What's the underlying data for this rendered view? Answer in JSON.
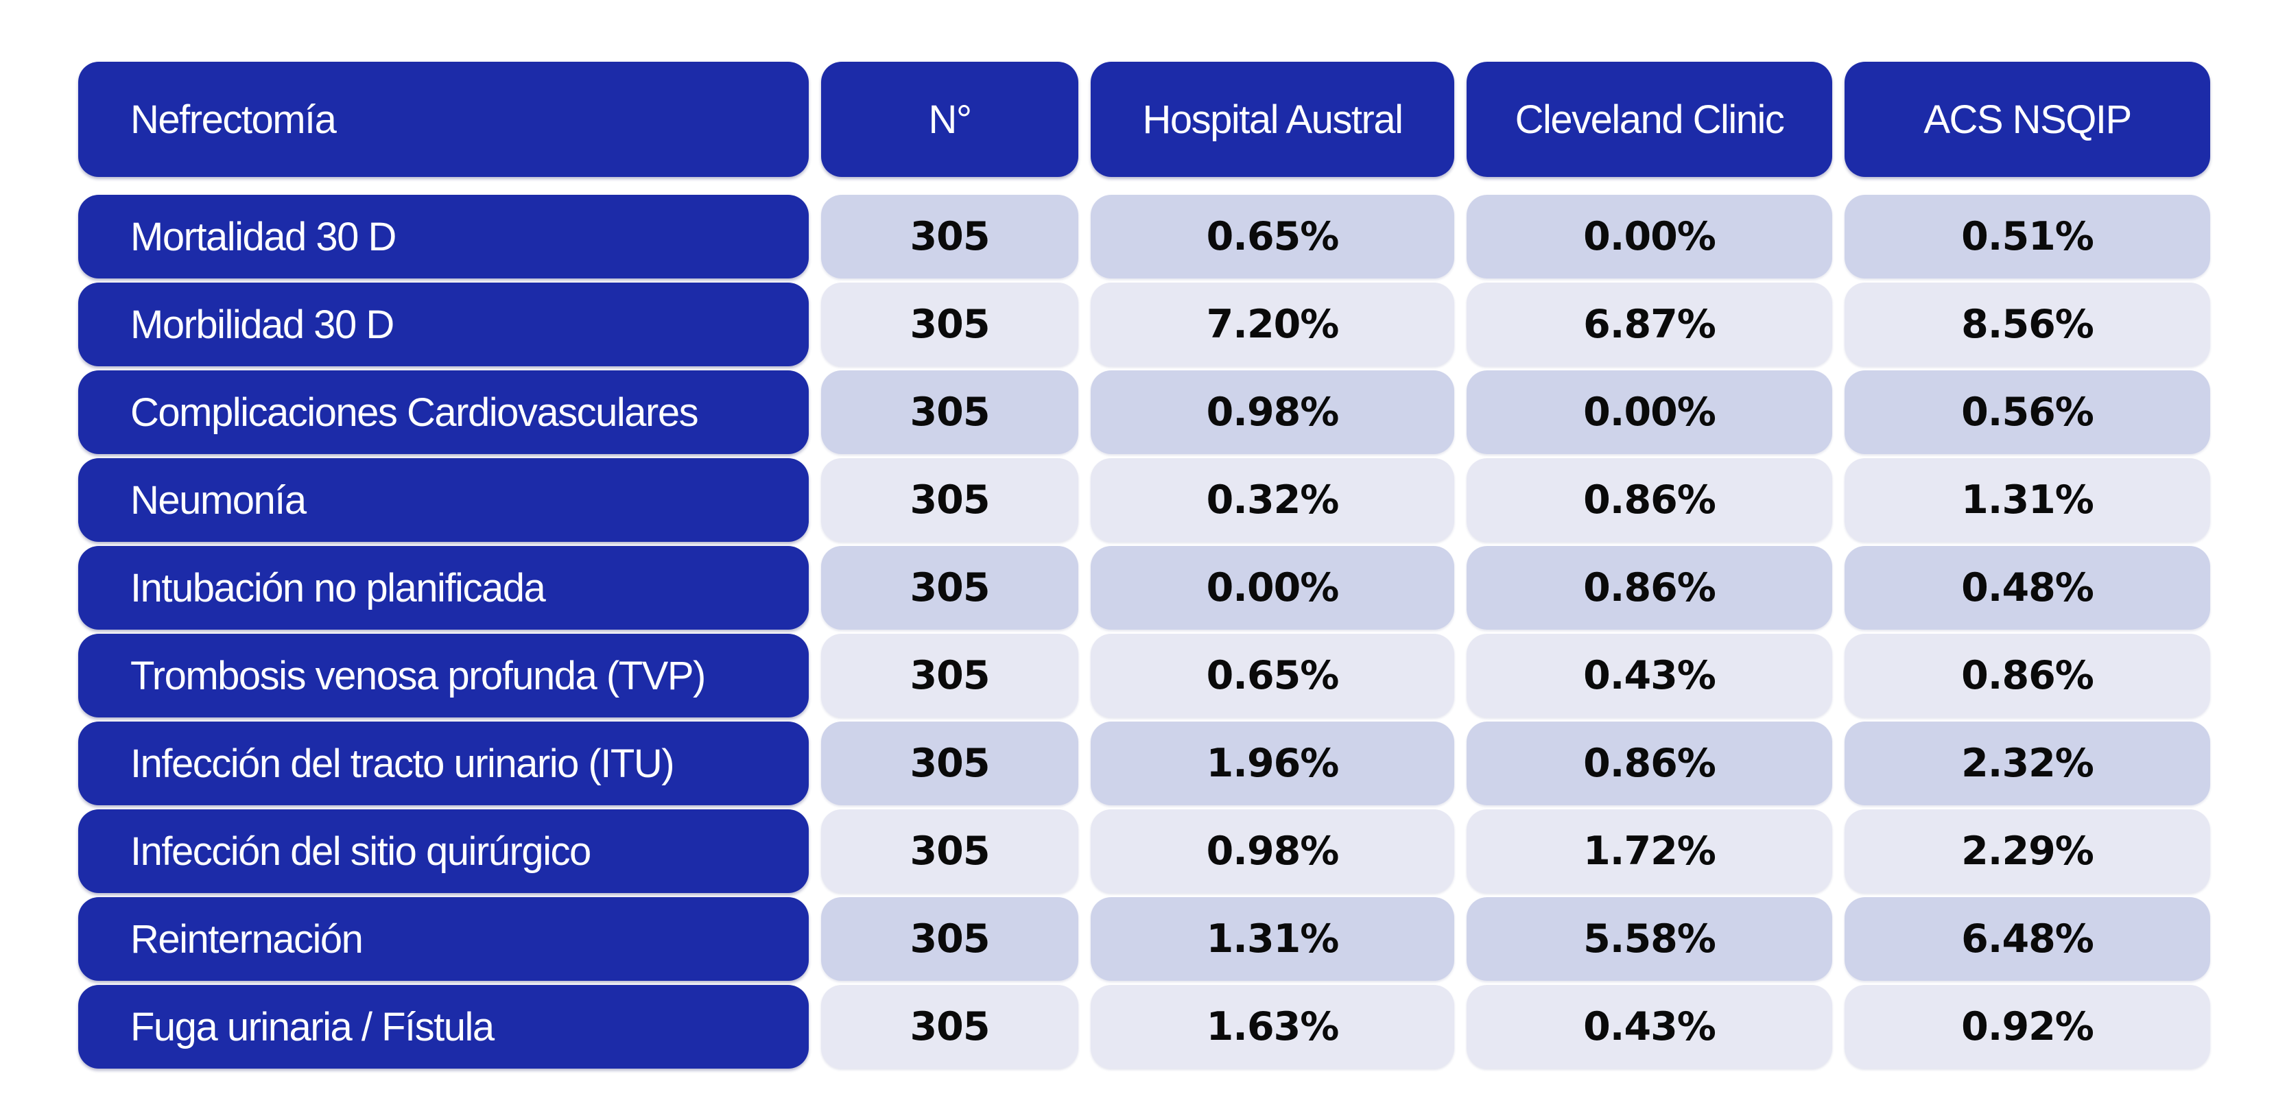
{
  "chart_data": {
    "type": "table",
    "title": "Nefrectomía",
    "columns": [
      "Nefrectomía",
      "N°",
      "Hospital Austral",
      "Cleveland Clinic",
      "ACS NSQIP"
    ],
    "rows": [
      [
        "Mortalidad 30 D",
        "305",
        "0.65%",
        "0.00%",
        "0.51%"
      ],
      [
        "Morbilidad 30 D",
        "305",
        "7.20%",
        "6.87%",
        "8.56%"
      ],
      [
        "Complicaciones Cardiovasculares",
        "305",
        "0.98%",
        "0.00%",
        "0.56%"
      ],
      [
        "Neumonía",
        "305",
        "0.32%",
        "0.86%",
        "1.31%"
      ],
      [
        "Intubación no planificada",
        "305",
        "0.00%",
        "0.86%",
        "0.48%"
      ],
      [
        "Trombosis venosa profunda (TVP)",
        "305",
        "0.65%",
        "0.43%",
        "0.86%"
      ],
      [
        "Infección del tracto urinario (ITU)",
        "305",
        "1.96%",
        "0.86%",
        "2.32%"
      ],
      [
        "Infección del sitio quirúrgico",
        "305",
        "0.98%",
        "1.72%",
        "2.29%"
      ],
      [
        "Reinternación",
        "305",
        "1.31%",
        "5.58%",
        "6.48%"
      ],
      [
        "Fuga urinaria / Fístula",
        "305",
        "1.63%",
        "0.43%",
        "0.92%"
      ]
    ],
    "layout": {
      "legend": "none",
      "grid": "off",
      "row_shading": "alternating (odd darker, even lighter)",
      "first_column_style": "blue pill header per row"
    }
  },
  "colors": {
    "header_background": "#1c2ba8",
    "row_label_background": "#1c2ba8",
    "header_text": "#ffffff",
    "data_text": "#0a0a0a",
    "row_shade_dark": "#ced3ea",
    "row_shade_light": "#e7e8f3",
    "page_background": "#ffffff"
  }
}
